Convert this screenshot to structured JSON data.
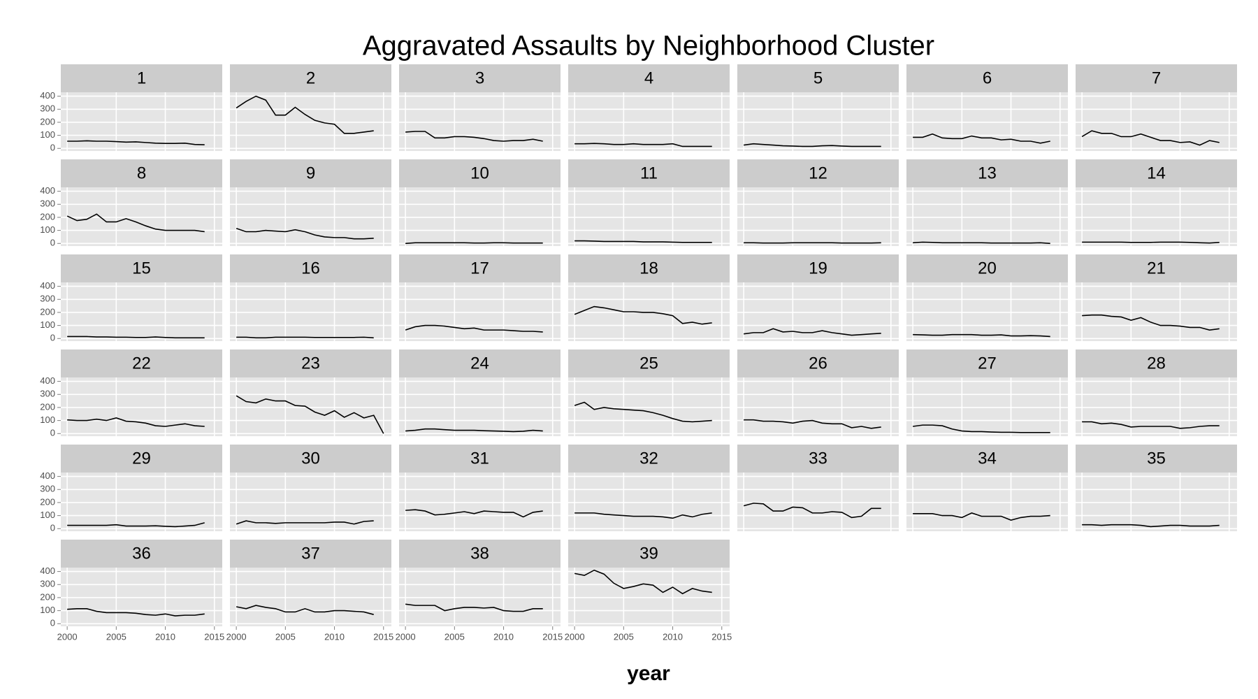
{
  "chart_data": {
    "type": "line",
    "title": "Aggravated Assaults by Neighborhood Cluster",
    "x_label": "year",
    "x": [
      2000,
      2001,
      2002,
      2003,
      2004,
      2005,
      2006,
      2007,
      2008,
      2009,
      2010,
      2011,
      2012,
      2013,
      2014,
      2015
    ],
    "xlim": [
      1999.35,
      2015.8
    ],
    "xticks": [
      2000,
      2005,
      2010,
      2015
    ],
    "ylim": [
      -20,
      430
    ],
    "yticks": [
      0,
      100,
      200,
      300,
      400
    ],
    "grid": true,
    "columns": 7,
    "series": [
      {
        "name": "1",
        "color": "#000000",
        "values": [
          55,
          55,
          58,
          55,
          55,
          52,
          48,
          50,
          45,
          40,
          38,
          38,
          40,
          30,
          28,
          null
        ]
      },
      {
        "name": "2",
        "color": "#000000",
        "values": [
          310,
          360,
          400,
          370,
          255,
          255,
          315,
          260,
          215,
          195,
          185,
          115,
          115,
          125,
          135,
          null
        ]
      },
      {
        "name": "3",
        "color": "#000000",
        "values": [
          125,
          130,
          130,
          80,
          80,
          90,
          90,
          85,
          75,
          60,
          55,
          60,
          60,
          70,
          55,
          null
        ]
      },
      {
        "name": "4",
        "color": "#000000",
        "values": [
          35,
          35,
          38,
          35,
          30,
          30,
          35,
          30,
          30,
          30,
          35,
          15,
          15,
          15,
          15,
          null
        ]
      },
      {
        "name": "5",
        "color": "#000000",
        "values": [
          25,
          35,
          30,
          25,
          20,
          18,
          15,
          15,
          20,
          22,
          18,
          15,
          15,
          15,
          15,
          null
        ]
      },
      {
        "name": "6",
        "color": "#000000",
        "values": [
          85,
          85,
          110,
          80,
          75,
          75,
          95,
          80,
          80,
          65,
          70,
          55,
          55,
          40,
          55,
          null
        ]
      },
      {
        "name": "7",
        "color": "#000000",
        "values": [
          90,
          135,
          115,
          115,
          90,
          90,
          110,
          85,
          60,
          60,
          45,
          50,
          25,
          60,
          45,
          null
        ]
      },
      {
        "name": "8",
        "color": "#000000",
        "values": [
          210,
          175,
          185,
          225,
          165,
          165,
          190,
          165,
          135,
          110,
          100,
          100,
          100,
          100,
          90,
          null
        ]
      },
      {
        "name": "9",
        "color": "#000000",
        "values": [
          115,
          90,
          90,
          100,
          95,
          90,
          105,
          90,
          65,
          50,
          45,
          45,
          35,
          35,
          40,
          null
        ]
      },
      {
        "name": "10",
        "color": "#000000",
        "values": [
          0,
          5,
          5,
          5,
          5,
          5,
          5,
          3,
          3,
          5,
          5,
          3,
          3,
          3,
          3,
          null
        ]
      },
      {
        "name": "11",
        "color": "#000000",
        "values": [
          20,
          20,
          18,
          15,
          15,
          15,
          15,
          12,
          12,
          12,
          10,
          8,
          8,
          8,
          8,
          null
        ]
      },
      {
        "name": "12",
        "color": "#000000",
        "values": [
          5,
          5,
          3,
          3,
          3,
          5,
          5,
          5,
          5,
          5,
          3,
          3,
          3,
          3,
          5,
          null
        ]
      },
      {
        "name": "13",
        "color": "#000000",
        "values": [
          5,
          10,
          8,
          5,
          5,
          5,
          5,
          5,
          3,
          3,
          3,
          3,
          3,
          5,
          0,
          null
        ]
      },
      {
        "name": "14",
        "color": "#000000",
        "values": [
          10,
          10,
          10,
          10,
          10,
          8,
          8,
          8,
          10,
          10,
          10,
          8,
          5,
          3,
          8,
          null
        ]
      },
      {
        "name": "15",
        "color": "#000000",
        "values": [
          15,
          15,
          15,
          12,
          12,
          10,
          10,
          8,
          8,
          12,
          8,
          5,
          5,
          5,
          5,
          null
        ]
      },
      {
        "name": "16",
        "color": "#000000",
        "values": [
          10,
          10,
          5,
          5,
          10,
          10,
          10,
          10,
          8,
          8,
          8,
          8,
          8,
          10,
          5,
          null
        ]
      },
      {
        "name": "17",
        "color": "#000000",
        "values": [
          65,
          90,
          100,
          100,
          95,
          85,
          75,
          80,
          65,
          65,
          65,
          60,
          55,
          55,
          50,
          null
        ]
      },
      {
        "name": "18",
        "color": "#000000",
        "values": [
          185,
          215,
          245,
          235,
          220,
          205,
          205,
          200,
          200,
          190,
          175,
          115,
          125,
          110,
          120,
          null
        ]
      },
      {
        "name": "19",
        "color": "#000000",
        "values": [
          35,
          45,
          45,
          75,
          50,
          55,
          45,
          45,
          60,
          45,
          35,
          25,
          30,
          35,
          40,
          null
        ]
      },
      {
        "name": "20",
        "color": "#000000",
        "values": [
          30,
          28,
          25,
          25,
          30,
          30,
          30,
          25,
          25,
          28,
          20,
          20,
          22,
          20,
          15,
          null
        ]
      },
      {
        "name": "21",
        "color": "#000000",
        "values": [
          175,
          180,
          180,
          170,
          165,
          140,
          160,
          125,
          100,
          100,
          95,
          85,
          85,
          65,
          75,
          null
        ]
      },
      {
        "name": "22",
        "color": "#000000",
        "values": [
          105,
          100,
          100,
          110,
          100,
          120,
          95,
          90,
          80,
          60,
          55,
          65,
          75,
          60,
          55,
          null
        ]
      },
      {
        "name": "23",
        "color": "#000000",
        "values": [
          290,
          245,
          235,
          265,
          250,
          250,
          215,
          210,
          165,
          140,
          175,
          125,
          160,
          120,
          140,
          0
        ]
      },
      {
        "name": "24",
        "color": "#000000",
        "values": [
          20,
          25,
          35,
          35,
          30,
          25,
          25,
          25,
          22,
          20,
          18,
          15,
          18,
          25,
          20,
          null
        ]
      },
      {
        "name": "25",
        "color": "#000000",
        "values": [
          215,
          240,
          185,
          200,
          190,
          185,
          180,
          175,
          160,
          140,
          115,
          95,
          90,
          95,
          100,
          null
        ]
      },
      {
        "name": "26",
        "color": "#000000",
        "values": [
          105,
          105,
          95,
          95,
          90,
          80,
          95,
          100,
          80,
          75,
          75,
          45,
          55,
          40,
          50,
          null
        ]
      },
      {
        "name": "27",
        "color": "#000000",
        "values": [
          55,
          65,
          65,
          60,
          35,
          20,
          15,
          15,
          12,
          10,
          10,
          8,
          8,
          8,
          8,
          null
        ]
      },
      {
        "name": "28",
        "color": "#000000",
        "values": [
          90,
          90,
          75,
          80,
          70,
          50,
          55,
          55,
          55,
          55,
          40,
          45,
          55,
          60,
          60,
          null
        ]
      },
      {
        "name": "29",
        "color": "#000000",
        "values": [
          25,
          25,
          25,
          25,
          25,
          30,
          20,
          20,
          20,
          22,
          18,
          15,
          20,
          25,
          45,
          null
        ]
      },
      {
        "name": "30",
        "color": "#000000",
        "values": [
          35,
          60,
          45,
          45,
          40,
          45,
          45,
          45,
          45,
          45,
          50,
          50,
          35,
          55,
          60,
          null
        ]
      },
      {
        "name": "31",
        "color": "#000000",
        "values": [
          140,
          145,
          135,
          105,
          110,
          120,
          130,
          115,
          135,
          130,
          125,
          125,
          90,
          125,
          135,
          null
        ]
      },
      {
        "name": "32",
        "color": "#000000",
        "values": [
          120,
          120,
          120,
          110,
          105,
          100,
          95,
          95,
          95,
          90,
          80,
          105,
          90,
          110,
          120,
          null
        ]
      },
      {
        "name": "33",
        "color": "#000000",
        "values": [
          175,
          195,
          190,
          135,
          135,
          165,
          160,
          120,
          120,
          130,
          125,
          85,
          95,
          155,
          155,
          null
        ]
      },
      {
        "name": "34",
        "color": "#000000",
        "values": [
          115,
          115,
          115,
          100,
          100,
          85,
          120,
          95,
          95,
          95,
          65,
          85,
          95,
          95,
          100,
          null
        ]
      },
      {
        "name": "35",
        "color": "#000000",
        "values": [
          30,
          30,
          25,
          30,
          30,
          30,
          25,
          15,
          20,
          25,
          25,
          20,
          20,
          20,
          25,
          null
        ]
      },
      {
        "name": "36",
        "color": "#000000",
        "values": [
          110,
          115,
          115,
          95,
          85,
          85,
          85,
          80,
          70,
          65,
          75,
          60,
          65,
          65,
          75,
          null
        ]
      },
      {
        "name": "37",
        "color": "#000000",
        "values": [
          130,
          115,
          140,
          125,
          115,
          90,
          90,
          115,
          90,
          90,
          100,
          100,
          95,
          90,
          70,
          null
        ]
      },
      {
        "name": "38",
        "color": "#000000",
        "values": [
          150,
          140,
          140,
          140,
          100,
          115,
          125,
          125,
          120,
          125,
          100,
          95,
          95,
          115,
          115,
          null
        ]
      },
      {
        "name": "39",
        "color": "#000000",
        "values": [
          385,
          370,
          410,
          380,
          310,
          270,
          285,
          305,
          295,
          240,
          280,
          230,
          270,
          250,
          240,
          null
        ]
      }
    ]
  }
}
